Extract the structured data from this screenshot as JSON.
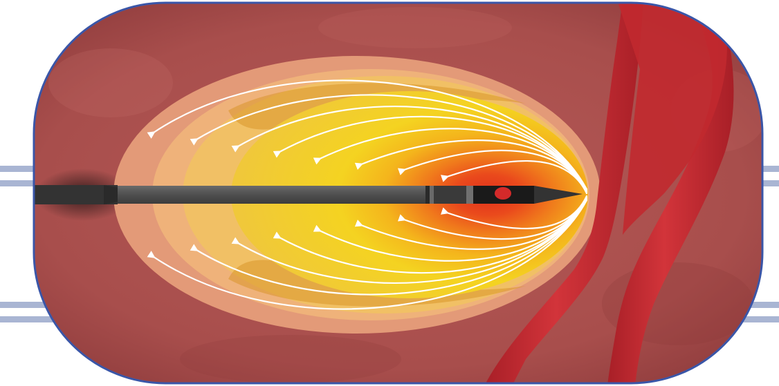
{
  "figure": {
    "subject": "ablation-needle-heat-zone-illustration",
    "colors": {
      "background": "#ffffff",
      "band_blue": "#a9b5d3",
      "frame_border": "#3a56a8",
      "tissue": "#a84e4c",
      "tissue_dark": "#8e3b3c",
      "zone_outer": "#e39a78",
      "zone_mid": "#f1c065",
      "zone_core": "#f4d321",
      "zone_hot": "#ea4a1c",
      "vessel": "#c1292f",
      "needle": "#4f4f4f",
      "needle_tip": "#1a1a1a",
      "electrode_dot": "#d42a2a",
      "arrow": "#ffffff"
    },
    "icons": {
      "needle": "ablation-needle-icon",
      "vessel": "blood-vessel-icon",
      "arrow": "heat-flow-arrow-icon"
    }
  }
}
